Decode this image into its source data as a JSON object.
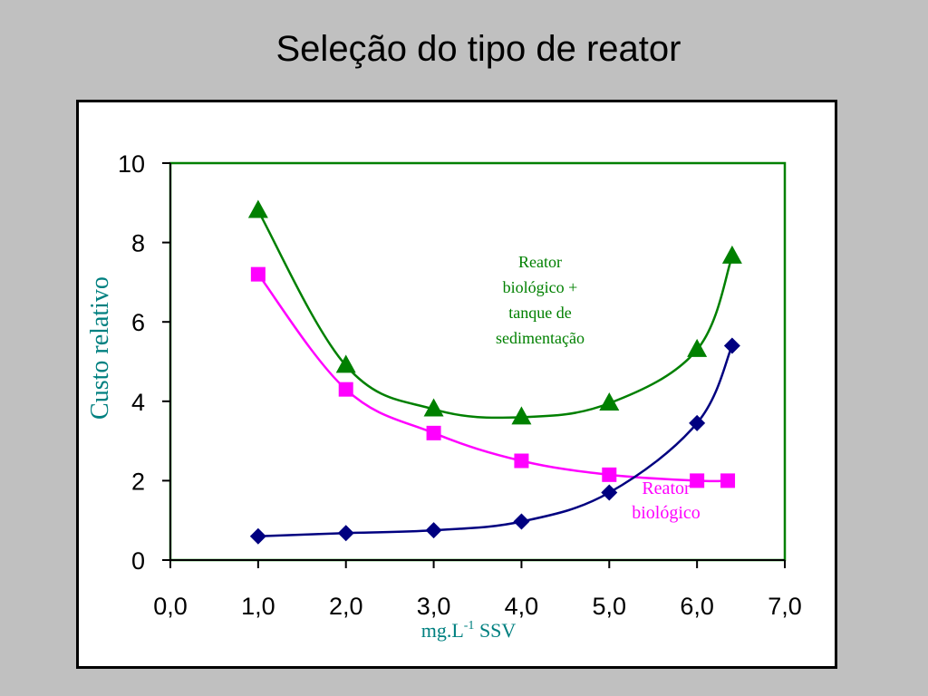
{
  "slide": {
    "title": "Seleção do tipo de reator"
  },
  "chart_data": {
    "type": "line",
    "xlabel": "mg.L-1 SSV",
    "xlabel_parts": {
      "base": "mg.L",
      "sup": "-1",
      "rest": " SSV"
    },
    "ylabel": "Custo relativo",
    "xlim": [
      0,
      7
    ],
    "ylim": [
      0,
      10
    ],
    "x_ticks": [
      "0,0",
      "1,0",
      "2,0",
      "3,0",
      "4,0",
      "5,0",
      "6,0",
      "7,0"
    ],
    "y_ticks": [
      "0",
      "2",
      "4",
      "6",
      "8",
      "10"
    ],
    "grid": false,
    "series": [
      {
        "key": "triangle",
        "color": "#008000",
        "marker": "triangle",
        "x": [
          1.0,
          2.0,
          3.0,
          4.0,
          5.0,
          6.0,
          6.4
        ],
        "y": [
          8.8,
          4.9,
          3.8,
          3.6,
          3.95,
          5.3,
          7.65
        ]
      },
      {
        "key": "square",
        "color": "#ff00ff",
        "marker": "square",
        "x": [
          1.0,
          2.0,
          3.0,
          4.0,
          5.0,
          6.0,
          6.35
        ],
        "y": [
          7.2,
          4.3,
          3.2,
          2.5,
          2.15,
          2.0,
          2.0
        ]
      },
      {
        "key": "diamond",
        "color": "#000080",
        "marker": "diamond",
        "x": [
          1.0,
          2.0,
          3.0,
          4.0,
          5.0,
          6.0,
          6.4
        ],
        "y": [
          0.6,
          0.68,
          0.75,
          0.97,
          1.7,
          3.45,
          5.4
        ]
      }
    ],
    "annotations": [
      {
        "key": "green_label",
        "color": "#008000",
        "lines": [
          "Reator",
          "biológico +",
          "tanque de",
          "sedimentação"
        ]
      },
      {
        "key": "pink_label",
        "color": "#ff00ff",
        "lines": [
          "Reator",
          "biológico"
        ]
      }
    ],
    "colors": {
      "plot_border": "#008000",
      "axis_label": "#008080"
    }
  }
}
